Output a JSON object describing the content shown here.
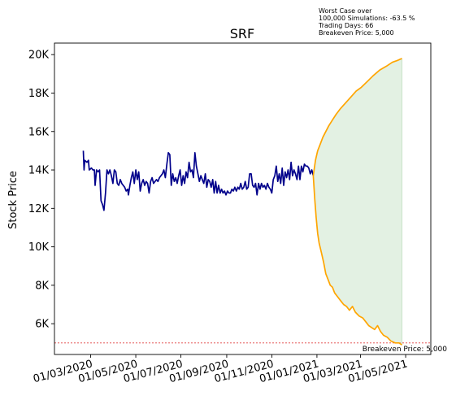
{
  "chart_data": {
    "type": "line",
    "title": "SRF",
    "ylabel": "Stock Price",
    "xlabel": "",
    "ylim": [
      4400,
      20600
    ],
    "xlim": [
      "2020-01-12",
      "2021-06-04"
    ],
    "y_ticks": [
      6000,
      8000,
      10000,
      12000,
      14000,
      16000,
      18000,
      20000
    ],
    "y_tick_labels": [
      "6K",
      "8K",
      "10K",
      "12K",
      "14K",
      "16K",
      "18K",
      "20K"
    ],
    "x_ticks": [
      "2020-03-01",
      "2020-05-01",
      "2020-07-01",
      "2020-09-01",
      "2020-11-01",
      "2021-01-01",
      "2021-03-01",
      "2021-05-01"
    ],
    "x_tick_labels": [
      "01/03/2020",
      "01/05/2020",
      "01/07/2020",
      "01/09/2020",
      "01/11/2020",
      "01/01/2021",
      "01/03/2021",
      "01/05/2021"
    ],
    "grid": false,
    "annotation_lines": [
      "Worst Case over",
      "100,000 Simulations: -63.5 %",
      "Trading Days: 66",
      "Breakeven Price: 5,000"
    ],
    "breakeven": {
      "value": 5000,
      "label": "Breakeven Price: 5,000",
      "color": "#e04040"
    },
    "colors": {
      "history": "#00008b",
      "upper": "#ffa500",
      "lower": "#ffa500",
      "band_fill": "#e3f1e3",
      "band_edge": "#c9e3c9"
    },
    "series": [
      {
        "role": "history",
        "points": [
          [
            "2020-02-20",
            15000
          ],
          [
            "2020-02-21",
            14000
          ],
          [
            "2020-02-22",
            14500
          ],
          [
            "2020-02-25",
            14400
          ],
          [
            "2020-02-27",
            14500
          ],
          [
            "2020-02-28",
            14000
          ],
          [
            "2020-03-02",
            14100
          ],
          [
            "2020-03-04",
            14000
          ],
          [
            "2020-03-06",
            14000
          ],
          [
            "2020-03-07",
            13200
          ],
          [
            "2020-03-09",
            14000
          ],
          [
            "2020-03-11",
            13900
          ],
          [
            "2020-03-13",
            14000
          ],
          [
            "2020-03-15",
            12400
          ],
          [
            "2020-03-17",
            12200
          ],
          [
            "2020-03-19",
            11900
          ],
          [
            "2020-03-21",
            12800
          ],
          [
            "2020-03-23",
            14000
          ],
          [
            "2020-03-25",
            13800
          ],
          [
            "2020-03-27",
            14000
          ],
          [
            "2020-03-29",
            13700
          ],
          [
            "2020-03-31",
            13300
          ],
          [
            "2020-04-02",
            14000
          ],
          [
            "2020-04-04",
            13900
          ],
          [
            "2020-04-06",
            13300
          ],
          [
            "2020-04-08",
            13200
          ],
          [
            "2020-04-10",
            13500
          ],
          [
            "2020-04-12",
            13300
          ],
          [
            "2020-04-14",
            13200
          ],
          [
            "2020-04-16",
            13100
          ],
          [
            "2020-04-18",
            12900
          ],
          [
            "2020-04-20",
            13000
          ],
          [
            "2020-04-21",
            12700
          ],
          [
            "2020-04-23",
            13200
          ],
          [
            "2020-04-25",
            13600
          ],
          [
            "2020-04-27",
            13900
          ],
          [
            "2020-04-29",
            13300
          ],
          [
            "2020-05-01",
            14000
          ],
          [
            "2020-05-03",
            13500
          ],
          [
            "2020-05-05",
            13900
          ],
          [
            "2020-05-07",
            12900
          ],
          [
            "2020-05-09",
            13300
          ],
          [
            "2020-05-11",
            13500
          ],
          [
            "2020-05-13",
            13200
          ],
          [
            "2020-05-15",
            13400
          ],
          [
            "2020-05-17",
            13300
          ],
          [
            "2020-05-19",
            12800
          ],
          [
            "2020-05-21",
            13400
          ],
          [
            "2020-05-23",
            13600
          ],
          [
            "2020-05-25",
            13300
          ],
          [
            "2020-05-27",
            13400
          ],
          [
            "2020-05-29",
            13500
          ],
          [
            "2020-05-31",
            13400
          ],
          [
            "2020-06-02",
            13600
          ],
          [
            "2020-06-04",
            13700
          ],
          [
            "2020-06-06",
            13800
          ],
          [
            "2020-06-08",
            14000
          ],
          [
            "2020-06-10",
            13600
          ],
          [
            "2020-06-12",
            14300
          ],
          [
            "2020-06-14",
            14900
          ],
          [
            "2020-06-16",
            14800
          ],
          [
            "2020-06-18",
            13200
          ],
          [
            "2020-06-20",
            13800
          ],
          [
            "2020-06-22",
            13400
          ],
          [
            "2020-06-24",
            13600
          ],
          [
            "2020-06-26",
            13300
          ],
          [
            "2020-06-28",
            13700
          ],
          [
            "2020-06-30",
            14000
          ],
          [
            "2020-07-02",
            13200
          ],
          [
            "2020-07-04",
            13700
          ],
          [
            "2020-07-06",
            13300
          ],
          [
            "2020-07-08",
            13900
          ],
          [
            "2020-07-10",
            13600
          ],
          [
            "2020-07-12",
            14400
          ],
          [
            "2020-07-14",
            13900
          ],
          [
            "2020-07-16",
            14000
          ],
          [
            "2020-07-18",
            13600
          ],
          [
            "2020-07-20",
            14900
          ],
          [
            "2020-07-22",
            14200
          ],
          [
            "2020-07-24",
            13800
          ],
          [
            "2020-07-26",
            13400
          ],
          [
            "2020-07-28",
            13700
          ],
          [
            "2020-07-30",
            13500
          ],
          [
            "2020-08-01",
            13300
          ],
          [
            "2020-08-03",
            13800
          ],
          [
            "2020-08-05",
            13100
          ],
          [
            "2020-08-07",
            13500
          ],
          [
            "2020-08-09",
            13400
          ],
          [
            "2020-08-11",
            13100
          ],
          [
            "2020-08-13",
            13500
          ],
          [
            "2020-08-15",
            12800
          ],
          [
            "2020-08-17",
            13400
          ],
          [
            "2020-08-19",
            12800
          ],
          [
            "2020-08-21",
            13200
          ],
          [
            "2020-08-23",
            12800
          ],
          [
            "2020-08-25",
            13000
          ],
          [
            "2020-08-27",
            12800
          ],
          [
            "2020-08-29",
            12900
          ],
          [
            "2020-08-31",
            12700
          ],
          [
            "2020-09-02",
            12900
          ],
          [
            "2020-09-04",
            12800
          ],
          [
            "2020-09-06",
            12800
          ],
          [
            "2020-09-08",
            13000
          ],
          [
            "2020-09-10",
            12900
          ],
          [
            "2020-09-12",
            13100
          ],
          [
            "2020-09-14",
            12900
          ],
          [
            "2020-09-16",
            13100
          ],
          [
            "2020-09-18",
            13000
          ],
          [
            "2020-09-20",
            13300
          ],
          [
            "2020-09-22",
            13000
          ],
          [
            "2020-09-24",
            13100
          ],
          [
            "2020-09-26",
            13400
          ],
          [
            "2020-09-28",
            13000
          ],
          [
            "2020-09-30",
            13100
          ],
          [
            "2020-10-02",
            13800
          ],
          [
            "2020-10-04",
            13800
          ],
          [
            "2020-10-06",
            13200
          ],
          [
            "2020-10-08",
            13100
          ],
          [
            "2020-10-10",
            13300
          ],
          [
            "2020-10-12",
            12700
          ],
          [
            "2020-10-14",
            13300
          ],
          [
            "2020-10-16",
            13000
          ],
          [
            "2020-10-18",
            13300
          ],
          [
            "2020-10-20",
            13100
          ],
          [
            "2020-10-22",
            13200
          ],
          [
            "2020-10-24",
            13000
          ],
          [
            "2020-10-26",
            13300
          ],
          [
            "2020-10-28",
            13100
          ],
          [
            "2020-10-30",
            13000
          ],
          [
            "2020-11-01",
            12800
          ],
          [
            "2020-11-03",
            13500
          ],
          [
            "2020-11-05",
            13700
          ],
          [
            "2020-11-07",
            14200
          ],
          [
            "2020-11-09",
            13400
          ],
          [
            "2020-11-11",
            13800
          ],
          [
            "2020-11-13",
            13300
          ],
          [
            "2020-11-15",
            14100
          ],
          [
            "2020-11-17",
            13200
          ],
          [
            "2020-11-19",
            13900
          ],
          [
            "2020-11-21",
            13600
          ],
          [
            "2020-11-23",
            14000
          ],
          [
            "2020-11-25",
            13500
          ],
          [
            "2020-11-27",
            14400
          ],
          [
            "2020-11-29",
            13700
          ],
          [
            "2020-12-01",
            14000
          ],
          [
            "2020-12-03",
            13800
          ],
          [
            "2020-12-05",
            13500
          ],
          [
            "2020-12-07",
            14200
          ],
          [
            "2020-12-09",
            13500
          ],
          [
            "2020-12-11",
            14200
          ],
          [
            "2020-12-13",
            13900
          ],
          [
            "2020-12-15",
            14300
          ],
          [
            "2020-12-17",
            14200
          ],
          [
            "2020-12-19",
            14200
          ],
          [
            "2020-12-21",
            14100
          ],
          [
            "2020-12-23",
            13800
          ],
          [
            "2020-12-25",
            14000
          ],
          [
            "2020-12-27",
            13700
          ]
        ]
      },
      {
        "role": "upper",
        "points": [
          [
            "2020-12-27",
            13700
          ],
          [
            "2020-12-30",
            14500
          ],
          [
            "2021-01-02",
            15000
          ],
          [
            "2021-01-05",
            15300
          ],
          [
            "2021-01-09",
            15700
          ],
          [
            "2021-01-13",
            16000
          ],
          [
            "2021-01-17",
            16300
          ],
          [
            "2021-01-22",
            16600
          ],
          [
            "2021-01-27",
            16900
          ],
          [
            "2021-02-02",
            17200
          ],
          [
            "2021-02-09",
            17500
          ],
          [
            "2021-02-16",
            17800
          ],
          [
            "2021-02-23",
            18100
          ],
          [
            "2021-03-02",
            18300
          ],
          [
            "2021-03-10",
            18600
          ],
          [
            "2021-03-18",
            18900
          ],
          [
            "2021-03-27",
            19200
          ],
          [
            "2021-04-05",
            19400
          ],
          [
            "2021-04-13",
            19600
          ],
          [
            "2021-04-20",
            19700
          ],
          [
            "2021-04-26",
            19800
          ]
        ]
      },
      {
        "role": "lower",
        "points": [
          [
            "2020-12-27",
            13700
          ],
          [
            "2020-12-29",
            12500
          ],
          [
            "2020-12-31",
            11500
          ],
          [
            "2021-01-02",
            10700
          ],
          [
            "2021-01-04",
            10200
          ],
          [
            "2021-01-07",
            9700
          ],
          [
            "2021-01-10",
            9200
          ],
          [
            "2021-01-13",
            8600
          ],
          [
            "2021-01-16",
            8300
          ],
          [
            "2021-01-19",
            8000
          ],
          [
            "2021-01-22",
            7900
          ],
          [
            "2021-01-25",
            7600
          ],
          [
            "2021-01-29",
            7400
          ],
          [
            "2021-02-02",
            7200
          ],
          [
            "2021-02-06",
            7000
          ],
          [
            "2021-02-10",
            6900
          ],
          [
            "2021-02-14",
            6700
          ],
          [
            "2021-02-18",
            6900
          ],
          [
            "2021-02-22",
            6600
          ],
          [
            "2021-02-27",
            6400
          ],
          [
            "2021-03-04",
            6300
          ],
          [
            "2021-03-08",
            6100
          ],
          [
            "2021-03-12",
            5900
          ],
          [
            "2021-03-16",
            5800
          ],
          [
            "2021-03-20",
            5700
          ],
          [
            "2021-03-24",
            5900
          ],
          [
            "2021-03-28",
            5600
          ],
          [
            "2021-04-01",
            5400
          ],
          [
            "2021-04-06",
            5300
          ],
          [
            "2021-04-11",
            5100
          ],
          [
            "2021-04-17",
            5000
          ],
          [
            "2021-04-22",
            5000
          ],
          [
            "2021-04-26",
            4900
          ]
        ]
      }
    ]
  }
}
